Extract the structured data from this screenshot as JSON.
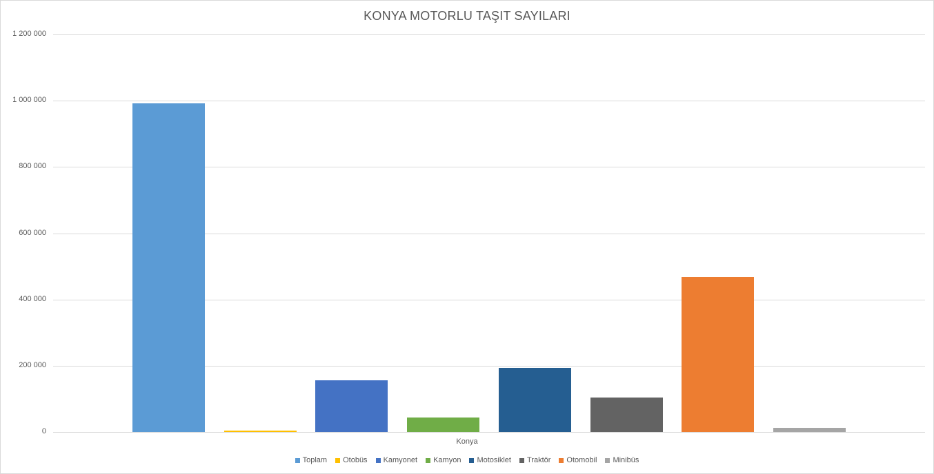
{
  "chart_data": {
    "type": "bar",
    "title": "KONYA MOTORLU TAŞIT SAYILARI",
    "xlabel": "",
    "ylabel": "",
    "categories": [
      "Konya"
    ],
    "series": [
      {
        "name": "Toplam",
        "values": [
          992000
        ],
        "color": "#5B9BD5"
      },
      {
        "name": "Otobüs",
        "values": [
          4000
        ],
        "color": "#FFC000"
      },
      {
        "name": "Kamyonet",
        "values": [
          156000
        ],
        "color": "#4472C4"
      },
      {
        "name": "Kamyon",
        "values": [
          44000
        ],
        "color": "#70AD47"
      },
      {
        "name": "Motosiklet",
        "values": [
          193000
        ],
        "color": "#255E91"
      },
      {
        "name": "Traktör",
        "values": [
          104000
        ],
        "color": "#636363"
      },
      {
        "name": "Otomobil",
        "values": [
          468000
        ],
        "color": "#ED7D31"
      },
      {
        "name": "Minibüs",
        "values": [
          12000
        ],
        "color": "#A5A5A5"
      }
    ],
    "ylim": [
      0,
      1200000
    ],
    "yticks": [
      "0",
      "200 000",
      "400 000",
      "600 000",
      "800 000",
      "1 000 000",
      "1 200 000"
    ],
    "grid": true,
    "legend_position": "bottom"
  },
  "title": "KONYA MOTORLU TAŞIT SAYILARI",
  "x_category": "Konya"
}
